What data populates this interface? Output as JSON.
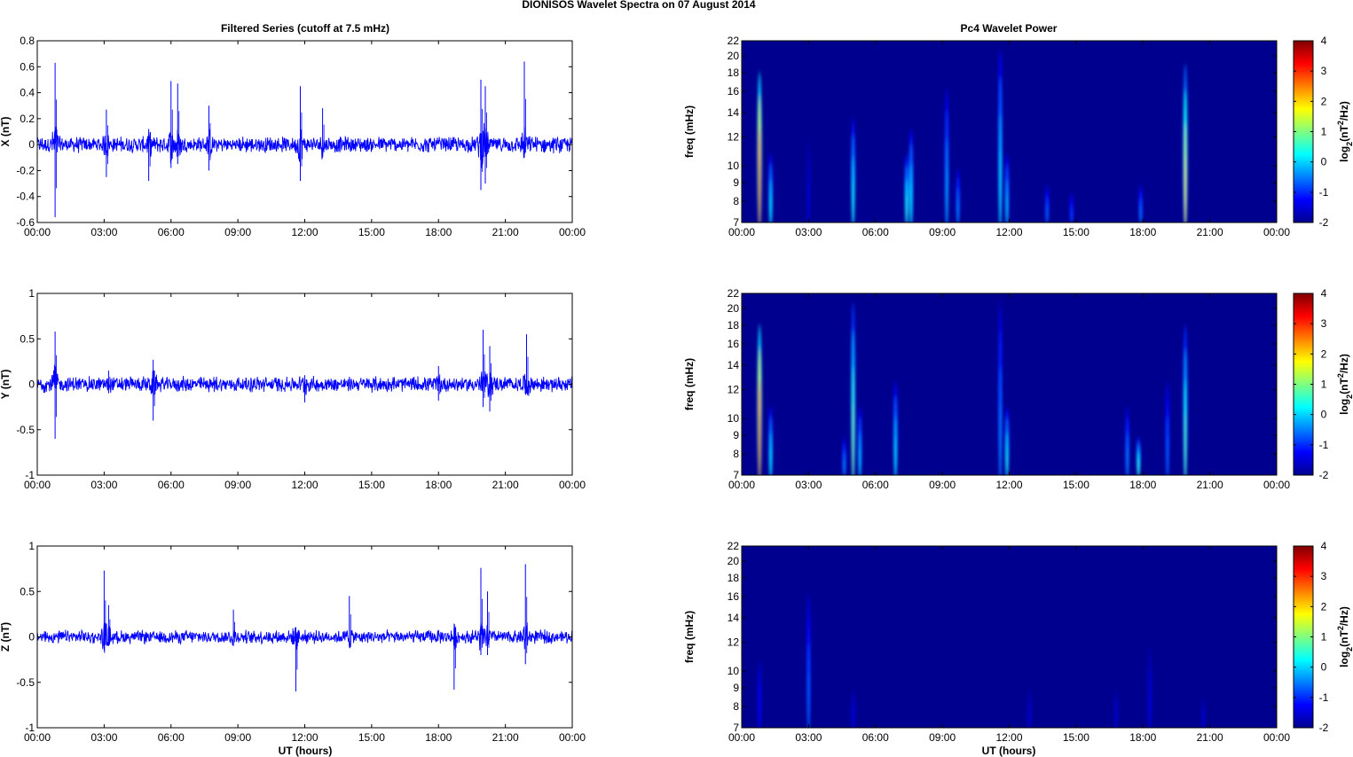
{
  "figure_title": "DIONISOS Wavelet Spectra on 07 August    2014",
  "left_title": "Filtered Series (cutoff at 7.5 mHz)",
  "right_title": "Pc4 Wavelet Power",
  "xlabel": "UT (hours)",
  "x_ticks": [
    "00:00",
    "03:00",
    "06:00",
    "09:00",
    "12:00",
    "15:00",
    "18:00",
    "21:00",
    "00:00"
  ],
  "colors": {
    "trace": "#0000ff",
    "spectrogram_bg": "#00008f"
  },
  "chart_data": [
    {
      "type": "line",
      "ylabel": "X (nT)",
      "ylim": [
        -0.6,
        0.8
      ],
      "yticks": [
        "0.8",
        "0.6",
        "0.4",
        "0.2",
        "0",
        "-0.2",
        "-0.4",
        "-0.6"
      ],
      "xlim_hours": [
        0,
        24
      ],
      "series": [
        {
          "values_described_by": "bursts",
          "noise_amplitude": 0.05,
          "bursts": [
            {
              "t": 0.8,
              "up": 0.63,
              "down": -0.56
            },
            {
              "t": 3.1,
              "up": 0.27,
              "down": -0.25
            },
            {
              "t": 5.0,
              "up": 0.12,
              "down": -0.28
            },
            {
              "t": 6.0,
              "up": 0.49,
              "down": -0.18
            },
            {
              "t": 6.3,
              "up": 0.47,
              "down": -0.15
            },
            {
              "t": 7.7,
              "up": 0.3,
              "down": -0.2
            },
            {
              "t": 11.8,
              "up": 0.45,
              "down": -0.28
            },
            {
              "t": 12.8,
              "up": 0.28,
              "down": -0.1
            },
            {
              "t": 19.9,
              "up": 0.5,
              "down": -0.35
            },
            {
              "t": 20.1,
              "up": 0.45,
              "down": -0.3
            },
            {
              "t": 21.85,
              "up": 0.64,
              "down": -0.1
            }
          ]
        }
      ]
    },
    {
      "type": "line",
      "ylabel": "Y (nT)",
      "ylim": [
        -1,
        1
      ],
      "yticks": [
        "1",
        "0.5",
        "0",
        "-0.5",
        "-1"
      ],
      "xlim_hours": [
        0,
        24
      ],
      "series": [
        {
          "values_described_by": "bursts",
          "noise_amplitude": 0.07,
          "bursts": [
            {
              "t": 0.8,
              "up": 0.58,
              "down": -0.6
            },
            {
              "t": 3.2,
              "up": 0.15,
              "down": -0.1
            },
            {
              "t": 5.2,
              "up": 0.27,
              "down": -0.4
            },
            {
              "t": 12.0,
              "up": 0.1,
              "down": -0.2
            },
            {
              "t": 18.0,
              "up": 0.2,
              "down": -0.18
            },
            {
              "t": 20.0,
              "up": 0.6,
              "down": -0.25
            },
            {
              "t": 20.3,
              "up": 0.42,
              "down": -0.3
            },
            {
              "t": 21.95,
              "up": 0.55,
              "down": -0.1
            }
          ]
        }
      ]
    },
    {
      "type": "line",
      "ylabel": "Z (nT)",
      "ylim": [
        -1,
        1
      ],
      "yticks": [
        "1",
        "0.5",
        "0",
        "-0.5",
        "-1"
      ],
      "xlim_hours": [
        0,
        24
      ],
      "series": [
        {
          "values_described_by": "bursts",
          "noise_amplitude": 0.06,
          "bursts": [
            {
              "t": 3.0,
              "up": 0.73,
              "down": -0.15
            },
            {
              "t": 3.2,
              "up": 0.35,
              "down": -0.1
            },
            {
              "t": 8.8,
              "up": 0.3,
              "down": -0.1
            },
            {
              "t": 11.6,
              "up": 0.1,
              "down": -0.6
            },
            {
              "t": 14.0,
              "up": 0.45,
              "down": -0.1
            },
            {
              "t": 18.7,
              "up": 0.1,
              "down": -0.58
            },
            {
              "t": 19.9,
              "up": 0.76,
              "down": -0.2
            },
            {
              "t": 20.2,
              "up": 0.5,
              "down": -0.2
            },
            {
              "t": 21.9,
              "up": 0.8,
              "down": -0.3
            }
          ]
        }
      ]
    },
    {
      "type": "heatmap",
      "ylabel": "freq (mHz)",
      "yticks": [
        "22",
        "20",
        "18",
        "16",
        "14",
        "12",
        "10",
        "9",
        "8",
        "7"
      ],
      "ylim_mhz": [
        7,
        22
      ],
      "colorbar_label": "log2(nT2/Hz)",
      "colorbar_ticks": [
        "4",
        "3",
        "2",
        "1",
        "0",
        "-1",
        "-2"
      ],
      "clim": [
        -2,
        4
      ],
      "streaks": [
        {
          "t": 0.8,
          "fmax": 19,
          "peak": 3.6
        },
        {
          "t": 1.3,
          "fmax": 11,
          "peak": 0.3
        },
        {
          "t": 3.0,
          "fmax": 12,
          "peak": -1.5
        },
        {
          "t": 5.0,
          "fmax": 14,
          "peak": 0.4
        },
        {
          "t": 7.4,
          "fmax": 11,
          "peak": 0.5
        },
        {
          "t": 7.6,
          "fmax": 13,
          "peak": 0.3
        },
        {
          "t": 9.2,
          "fmax": 17,
          "peak": -0.2
        },
        {
          "t": 9.7,
          "fmax": 10,
          "peak": -0.4
        },
        {
          "t": 11.6,
          "fmax": 22,
          "peak": 0.2
        },
        {
          "t": 11.9,
          "fmax": 11,
          "peak": 0.0
        },
        {
          "t": 13.7,
          "fmax": 9,
          "peak": -0.6
        },
        {
          "t": 14.8,
          "fmax": 8.5,
          "peak": -0.8
        },
        {
          "t": 17.9,
          "fmax": 9,
          "peak": -0.5
        },
        {
          "t": 19.9,
          "fmax": 20,
          "peak": 1.9
        }
      ]
    },
    {
      "type": "heatmap",
      "ylabel": "freq (mHz)",
      "yticks": [
        "22",
        "20",
        "18",
        "16",
        "14",
        "12",
        "10",
        "9",
        "8",
        "7"
      ],
      "ylim_mhz": [
        7,
        22
      ],
      "colorbar_label": "log2(nT2/Hz)",
      "colorbar_ticks": [
        "4",
        "3",
        "2",
        "1",
        "0",
        "-1",
        "-2"
      ],
      "clim": [
        -2,
        4
      ],
      "streaks": [
        {
          "t": 0.8,
          "fmax": 19,
          "peak": 3.6
        },
        {
          "t": 1.3,
          "fmax": 11,
          "peak": 0.3
        },
        {
          "t": 4.6,
          "fmax": 9,
          "peak": -0.4
        },
        {
          "t": 5.0,
          "fmax": 22,
          "peak": 1.0
        },
        {
          "t": 5.3,
          "fmax": 11,
          "peak": 0.0
        },
        {
          "t": 6.9,
          "fmax": 13,
          "peak": 0.2
        },
        {
          "t": 11.6,
          "fmax": 22,
          "peak": -0.4
        },
        {
          "t": 11.9,
          "fmax": 11,
          "peak": 0.4
        },
        {
          "t": 17.3,
          "fmax": 11,
          "peak": -0.4
        },
        {
          "t": 17.8,
          "fmax": 9,
          "peak": 0.6
        },
        {
          "t": 19.1,
          "fmax": 13,
          "peak": -0.6
        },
        {
          "t": 19.9,
          "fmax": 19,
          "peak": 0.8
        }
      ]
    },
    {
      "type": "heatmap",
      "ylabel": "freq (mHz)",
      "yticks": [
        "22",
        "20",
        "18",
        "16",
        "14",
        "12",
        "10",
        "9",
        "8",
        "7"
      ],
      "ylim_mhz": [
        7,
        22
      ],
      "colorbar_label": "log2(nT2/Hz)",
      "colorbar_ticks": [
        "4",
        "3",
        "2",
        "1",
        "0",
        "-1",
        "-2"
      ],
      "clim": [
        -2,
        4
      ],
      "streaks": [
        {
          "t": 0.8,
          "fmax": 11,
          "peak": -1.2
        },
        {
          "t": 3.0,
          "fmax": 17,
          "peak": -0.6
        },
        {
          "t": 5.0,
          "fmax": 9,
          "peak": -1.4
        },
        {
          "t": 12.9,
          "fmax": 9,
          "peak": -1.5
        },
        {
          "t": 16.8,
          "fmax": 9,
          "peak": -1.5
        },
        {
          "t": 18.3,
          "fmax": 12,
          "peak": -1.4
        },
        {
          "t": 20.7,
          "fmax": 8.5,
          "peak": -1.5
        }
      ]
    }
  ]
}
